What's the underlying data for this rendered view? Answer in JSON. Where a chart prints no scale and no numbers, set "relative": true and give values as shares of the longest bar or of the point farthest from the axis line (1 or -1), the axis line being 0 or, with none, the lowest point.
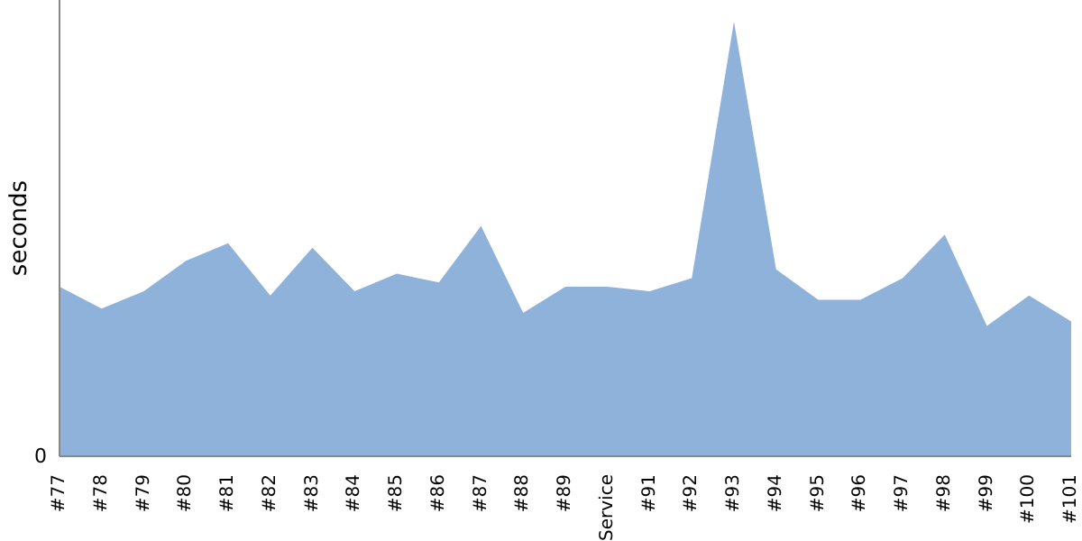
{
  "chart_data": {
    "type": "area",
    "ylabel": "seconds",
    "relative": true,
    "annotations": [
      "0"
    ],
    "grid": false,
    "legend": false,
    "categories": [
      "#77",
      "#78",
      "#79",
      "#80",
      "#81",
      "#82",
      "#83",
      "#84",
      "#85",
      "#86",
      "#87",
      "#88",
      "#89",
      "Service",
      "#91",
      "#92",
      "#93",
      "#94",
      "#95",
      "#96",
      "#97",
      "#98",
      "#99",
      "#100",
      "#101"
    ],
    "series": [
      {
        "color": "#8fb2db",
        "values": [
          0.39,
          0.34,
          0.38,
          0.45,
          0.49,
          0.37,
          0.48,
          0.38,
          0.42,
          0.4,
          0.53,
          0.33,
          0.39,
          0.39,
          0.38,
          0.41,
          1,
          0.43,
          0.36,
          0.36,
          0.41,
          0.51,
          0.3,
          0.37,
          0.31
        ]
      }
    ]
  }
}
